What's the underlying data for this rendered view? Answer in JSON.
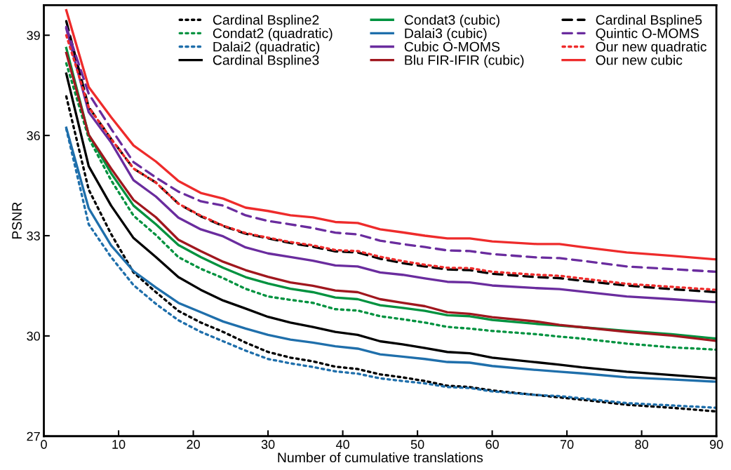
{
  "chart_data": {
    "type": "line",
    "xlabel": "Number of cumulative translations",
    "ylabel": "PSNR",
    "x": [
      3,
      6,
      9,
      12,
      15,
      18,
      21,
      24,
      27,
      30,
      33,
      36,
      39,
      42,
      45,
      48,
      51,
      54,
      57,
      60,
      66,
      69,
      72,
      78,
      84,
      90
    ],
    "xlim": [
      0,
      90
    ],
    "xticks": [
      0,
      10,
      20,
      30,
      40,
      50,
      60,
      70,
      80,
      90
    ],
    "ylim": [
      27,
      39.9
    ],
    "yticks": [
      27,
      30,
      33,
      36,
      39
    ],
    "grid": false,
    "legend": "top right",
    "marker": "none",
    "series": [
      {
        "name": "Cardinal Bspline2",
        "color": "#000000",
        "line_style": "dotted",
        "values": [
          37.17,
          34.38,
          33.05,
          31.9,
          31.31,
          30.75,
          30.4,
          30.12,
          29.8,
          29.52,
          29.35,
          29.24,
          29.08,
          29.01,
          28.85,
          28.76,
          28.65,
          28.51,
          28.47,
          28.37,
          28.23,
          28.16,
          28.09,
          27.94,
          27.85,
          27.74
        ]
      },
      {
        "name": "Condat2 (quadratic)",
        "color": "#00923f",
        "line_style": "dotted",
        "values": [
          38.16,
          35.92,
          34.66,
          33.6,
          33.02,
          32.36,
          32.01,
          31.73,
          31.41,
          31.18,
          31.08,
          30.99,
          30.8,
          30.76,
          30.59,
          30.5,
          30.4,
          30.27,
          30.22,
          30.15,
          30.05,
          29.98,
          29.92,
          29.77,
          29.66,
          29.59
        ]
      },
      {
        "name": "Dalai2 (quadratic)",
        "color": "#1f6fab",
        "line_style": "dotted",
        "values": [
          36.2,
          33.34,
          32.36,
          31.52,
          30.96,
          30.47,
          30.12,
          29.84,
          29.56,
          29.31,
          29.18,
          29.07,
          28.94,
          28.87,
          28.73,
          28.65,
          28.58,
          28.47,
          28.44,
          28.34,
          28.23,
          28.2,
          28.13,
          27.99,
          27.92,
          27.85
        ]
      },
      {
        "name": "Cardinal Bspline3",
        "color": "#000000",
        "line_style": "solid",
        "values": [
          37.85,
          35.08,
          33.9,
          32.93,
          32.36,
          31.76,
          31.38,
          31.06,
          30.82,
          30.57,
          30.4,
          30.27,
          30.12,
          30.03,
          29.84,
          29.75,
          29.64,
          29.52,
          29.48,
          29.35,
          29.21,
          29.14,
          29.06,
          28.93,
          28.83,
          28.73
        ]
      },
      {
        "name": "Condat3 (cubic)",
        "color": "#00923f",
        "line_style": "solid",
        "values": [
          38.62,
          36.02,
          34.87,
          33.9,
          33.34,
          32.72,
          32.36,
          32.04,
          31.76,
          31.57,
          31.41,
          31.31,
          31.15,
          31.1,
          30.92,
          30.84,
          30.75,
          30.62,
          30.59,
          30.48,
          30.36,
          30.31,
          30.26,
          30.15,
          30.05,
          29.92
        ]
      },
      {
        "name": "Dalai3 (cubic)",
        "color": "#1f6fab",
        "line_style": "solid",
        "values": [
          36.23,
          33.82,
          32.71,
          31.94,
          31.45,
          30.99,
          30.71,
          30.43,
          30.22,
          30.03,
          29.89,
          29.8,
          29.69,
          29.62,
          29.45,
          29.38,
          29.31,
          29.22,
          29.2,
          29.1,
          28.98,
          28.93,
          28.88,
          28.76,
          28.7,
          28.63
        ]
      },
      {
        "name": "Cubic O-MOMS",
        "color": "#6a2c9e",
        "line_style": "solid",
        "values": [
          39.2,
          36.7,
          35.79,
          34.66,
          34.17,
          33.54,
          33.19,
          32.98,
          32.65,
          32.47,
          32.36,
          32.25,
          32.11,
          32.08,
          31.9,
          31.83,
          31.72,
          31.62,
          31.6,
          31.51,
          31.43,
          31.4,
          31.33,
          31.18,
          31.1,
          31.01
        ]
      },
      {
        "name": "Blu FIR-IFIR (cubic)",
        "color": "#a0171e",
        "line_style": "solid",
        "values": [
          38.47,
          36.02,
          35.01,
          34.07,
          33.55,
          32.88,
          32.54,
          32.22,
          31.97,
          31.77,
          31.6,
          31.5,
          31.36,
          31.31,
          31.1,
          30.99,
          30.89,
          30.71,
          30.66,
          30.56,
          30.43,
          30.33,
          30.26,
          30.12,
          30.01,
          29.85
        ]
      },
      {
        "name": "Cardinal Bspline5",
        "color": "#000000",
        "line_style": "dashed",
        "values": [
          39.42,
          36.85,
          35.9,
          35.01,
          34.59,
          33.96,
          33.58,
          33.29,
          33.06,
          32.92,
          32.78,
          32.67,
          32.53,
          32.5,
          32.31,
          32.18,
          32.08,
          31.99,
          31.97,
          31.86,
          31.76,
          31.73,
          31.65,
          31.51,
          31.4,
          31.31
        ]
      },
      {
        "name": "Quintic O-MOMS",
        "color": "#6a2c9e",
        "line_style": "dashed",
        "values": [
          39.25,
          37.25,
          36.2,
          35.2,
          34.74,
          34.32,
          34.03,
          33.9,
          33.61,
          33.44,
          33.34,
          33.23,
          33.09,
          33.04,
          32.85,
          32.75,
          32.66,
          32.56,
          32.54,
          32.45,
          32.35,
          32.33,
          32.25,
          32.08,
          32.0,
          31.92
        ]
      },
      {
        "name": "Our new quadratic",
        "color": "#ee2b2b",
        "line_style": "dotted",
        "values": [
          39.0,
          36.85,
          35.9,
          35.01,
          34.59,
          33.96,
          33.6,
          33.3,
          33.08,
          32.94,
          32.81,
          32.71,
          32.57,
          32.54,
          32.37,
          32.24,
          32.13,
          32.04,
          32.03,
          31.92,
          31.83,
          31.8,
          31.72,
          31.56,
          31.47,
          31.38
        ]
      },
      {
        "name": "Our new cubic",
        "color": "#ee2b2b",
        "line_style": "solid",
        "values": [
          39.75,
          37.45,
          36.55,
          35.7,
          35.22,
          34.64,
          34.28,
          34.11,
          33.84,
          33.74,
          33.61,
          33.55,
          33.41,
          33.38,
          33.19,
          33.1,
          33.0,
          32.92,
          32.92,
          32.83,
          32.75,
          32.75,
          32.66,
          32.5,
          32.4,
          32.29
        ]
      }
    ]
  }
}
